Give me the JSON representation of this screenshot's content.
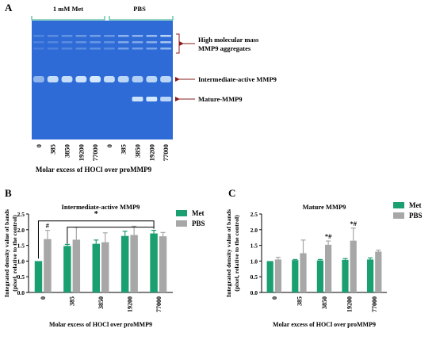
{
  "panels": {
    "A": {
      "letter": "A",
      "groups": [
        "1 mM Met",
        "PBS"
      ],
      "lanes": [
        "0",
        "385",
        "3850",
        "19200",
        "77000",
        "0",
        "385",
        "3850",
        "19200",
        "77000"
      ],
      "xlabel": "Molar excess of HOCl over proMMP9",
      "annotations": [
        "High molecular mass",
        "MMP9 aggregates",
        "Intermediate-active MMP9",
        "Mature-MMP9"
      ],
      "colors": {
        "gel": "#2f6bd6",
        "bands": "#dff1ff",
        "arrows": "#8b1c1c"
      }
    },
    "B": {
      "letter": "B"
    },
    "C": {
      "letter": "C"
    }
  },
  "chart_data": [
    {
      "type": "bar",
      "panel": "B",
      "title": "Intermediate-active MMP9",
      "xlabel": "Molar excess of HOCl over proMMP9",
      "ylabel": "Integrated density value of bands\n(pixel, relative to the control)",
      "categories": [
        "0",
        "385",
        "3850",
        "19200",
        "77000"
      ],
      "ylim": [
        0,
        2.5
      ],
      "yticks": [
        "0.0",
        "0.5",
        "1.0",
        "1.5",
        "2.0",
        "2.5"
      ],
      "series": [
        {
          "name": "Met",
          "color": "#1a9f71",
          "values": [
            1.0,
            1.48,
            1.55,
            1.8,
            1.88
          ],
          "errors": [
            0.0,
            0.05,
            0.12,
            0.15,
            0.1
          ]
        },
        {
          "name": "PBS",
          "color": "#a7a7a7",
          "values": [
            1.7,
            1.68,
            1.6,
            1.83,
            1.79
          ],
          "errors": [
            0.28,
            0.4,
            0.3,
            0.28,
            0.12
          ]
        }
      ],
      "marks": [
        {
          "category": "0",
          "series": "PBS",
          "text": "#"
        }
      ],
      "significance": {
        "text": "*",
        "from": "0",
        "to": [
          "385",
          "77000"
        ]
      },
      "legend": "top-right",
      "grid": false
    },
    {
      "type": "bar",
      "panel": "C",
      "title": "Mature MMP9",
      "xlabel": "Molar excess of HOCl over proMMP9",
      "ylabel": "Integrated density value of bands\n(pixel, relative to the control)",
      "categories": [
        "0",
        "385",
        "3850",
        "19200",
        "77000"
      ],
      "ylim": [
        0,
        2.5
      ],
      "yticks": [
        "0.0",
        "0.5",
        "1.0",
        "1.5",
        "2.0",
        "2.5"
      ],
      "series": [
        {
          "name": "Met",
          "color": "#1a9f71",
          "values": [
            1.0,
            1.03,
            1.02,
            1.04,
            1.05
          ],
          "errors": [
            0.0,
            0.02,
            0.03,
            0.04,
            0.05
          ]
        },
        {
          "name": "PBS",
          "color": "#a7a7a7",
          "values": [
            1.05,
            1.25,
            1.52,
            1.65,
            1.3
          ],
          "errors": [
            0.07,
            0.42,
            0.12,
            0.4,
            0.05
          ]
        }
      ],
      "marks": [
        {
          "category": "3850",
          "series": "PBS",
          "text": "*#"
        },
        {
          "category": "19200",
          "series": "PBS",
          "text": "*#"
        }
      ],
      "legend": "top-right",
      "grid": false
    }
  ]
}
